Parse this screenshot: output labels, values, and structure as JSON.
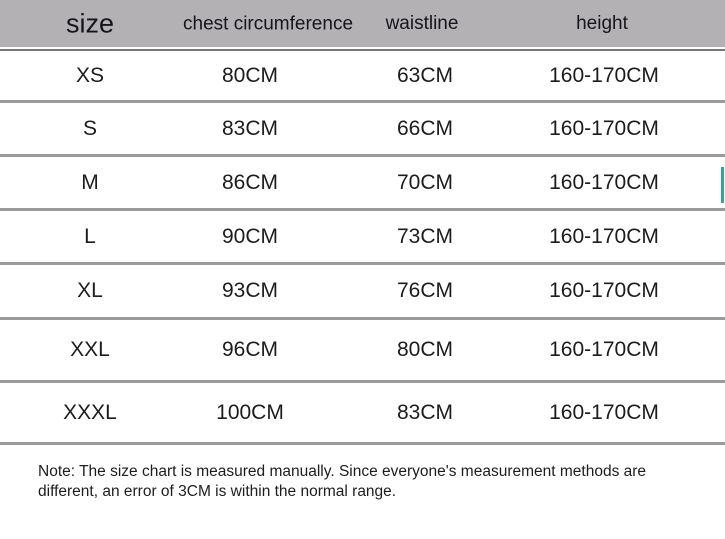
{
  "table": {
    "columns": [
      {
        "label": "size"
      },
      {
        "label": "chest circumference"
      },
      {
        "label": "waistline"
      },
      {
        "label": "height"
      }
    ],
    "rows": [
      {
        "size": "XS",
        "chest": "80CM",
        "waist": "63CM",
        "height": "160-170CM"
      },
      {
        "size": "S",
        "chest": "83CM",
        "waist": "66CM",
        "height": "160-170CM"
      },
      {
        "size": "M",
        "chest": "86CM",
        "waist": "70CM",
        "height": "160-170CM"
      },
      {
        "size": "L",
        "chest": "90CM",
        "waist": "73CM",
        "height": "160-170CM"
      },
      {
        "size": "XL",
        "chest": "93CM",
        "waist": "76CM",
        "height": "160-170CM"
      },
      {
        "size": "XXL",
        "chest": "96CM",
        "waist": "80CM",
        "height": "160-170CM"
      },
      {
        "size": "XXXL",
        "chest": "100CM",
        "waist": "83CM",
        "height": "160-170CM"
      }
    ]
  },
  "note": "Note: The size chart is measured manually. Since everyone's measurement methods are different, an error of 3CM is within the normal range.",
  "colors": {
    "header_bg": "#b4b1b4",
    "divider": "#9a9a9a",
    "header_underline": "#787878",
    "accent_teal": "#3aa3a2",
    "text": "#1c1c1c"
  }
}
